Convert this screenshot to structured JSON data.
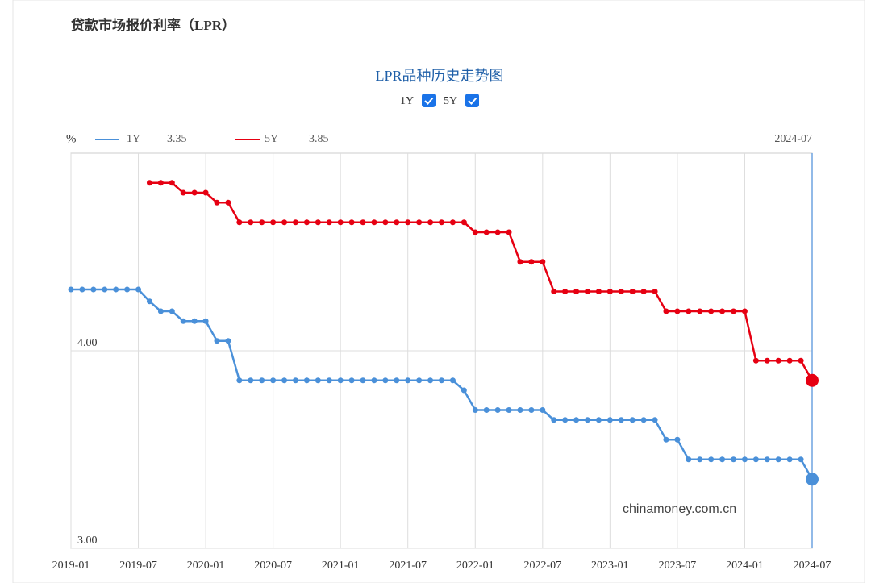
{
  "page_title": "贷款市场报价利率（LPR）",
  "chart_data": {
    "type": "line",
    "title": "LPR品种历史走势图",
    "y_label": "%",
    "watermark": "chinamoney.com.cn",
    "x": [
      "2019-01",
      "2019-02",
      "2019-03",
      "2019-04",
      "2019-05",
      "2019-06",
      "2019-07",
      "2019-08",
      "2019-09",
      "2019-10",
      "2019-11",
      "2019-12",
      "2020-01",
      "2020-02",
      "2020-03",
      "2020-04",
      "2020-05",
      "2020-06",
      "2020-07",
      "2020-08",
      "2020-09",
      "2020-10",
      "2020-11",
      "2020-12",
      "2021-01",
      "2021-02",
      "2021-03",
      "2021-04",
      "2021-05",
      "2021-06",
      "2021-07",
      "2021-08",
      "2021-09",
      "2021-10",
      "2021-11",
      "2021-12",
      "2022-01",
      "2022-02",
      "2022-03",
      "2022-04",
      "2022-05",
      "2022-06",
      "2022-07",
      "2022-08",
      "2022-09",
      "2022-10",
      "2022-11",
      "2022-12",
      "2023-01",
      "2023-02",
      "2023-03",
      "2023-04",
      "2023-05",
      "2023-06",
      "2023-07",
      "2023-08",
      "2023-09",
      "2023-10",
      "2023-11",
      "2023-12",
      "2024-01",
      "2024-02",
      "2024-03",
      "2024-04",
      "2024-05",
      "2024-06",
      "2024-07"
    ],
    "xticks": [
      "2019-01",
      "2019-07",
      "2020-01",
      "2020-07",
      "2021-01",
      "2021-07",
      "2022-01",
      "2022-07",
      "2023-01",
      "2023-07",
      "2024-01",
      "2024-07"
    ],
    "series": [
      {
        "name": "1Y",
        "color": "#4a90d9",
        "values": [
          4.31,
          4.31,
          4.31,
          4.31,
          4.31,
          4.31,
          4.31,
          4.25,
          4.2,
          4.2,
          4.15,
          4.15,
          4.15,
          4.05,
          4.05,
          3.85,
          3.85,
          3.85,
          3.85,
          3.85,
          3.85,
          3.85,
          3.85,
          3.85,
          3.85,
          3.85,
          3.85,
          3.85,
          3.85,
          3.85,
          3.85,
          3.85,
          3.85,
          3.85,
          3.85,
          3.8,
          3.7,
          3.7,
          3.7,
          3.7,
          3.7,
          3.7,
          3.7,
          3.65,
          3.65,
          3.65,
          3.65,
          3.65,
          3.65,
          3.65,
          3.65,
          3.65,
          3.65,
          3.55,
          3.55,
          3.45,
          3.45,
          3.45,
          3.45,
          3.45,
          3.45,
          3.45,
          3.45,
          3.45,
          3.45,
          3.45,
          3.35
        ]
      },
      {
        "name": "5Y",
        "color": "#e60012",
        "values": [
          null,
          null,
          null,
          null,
          null,
          null,
          null,
          4.85,
          4.85,
          4.85,
          4.8,
          4.8,
          4.8,
          4.75,
          4.75,
          4.65,
          4.65,
          4.65,
          4.65,
          4.65,
          4.65,
          4.65,
          4.65,
          4.65,
          4.65,
          4.65,
          4.65,
          4.65,
          4.65,
          4.65,
          4.65,
          4.65,
          4.65,
          4.65,
          4.65,
          4.65,
          4.6,
          4.6,
          4.6,
          4.6,
          4.45,
          4.45,
          4.45,
          4.3,
          4.3,
          4.3,
          4.3,
          4.3,
          4.3,
          4.3,
          4.3,
          4.3,
          4.3,
          4.2,
          4.2,
          4.2,
          4.2,
          4.2,
          4.2,
          4.2,
          4.2,
          3.95,
          3.95,
          3.95,
          3.95,
          3.95,
          3.85
        ]
      }
    ],
    "ylim": [
      3,
      5
    ],
    "yticks": [
      {
        "value": 3,
        "label": "3.00"
      },
      {
        "value": 4,
        "label": "4.00"
      }
    ],
    "grid": true
  }
}
